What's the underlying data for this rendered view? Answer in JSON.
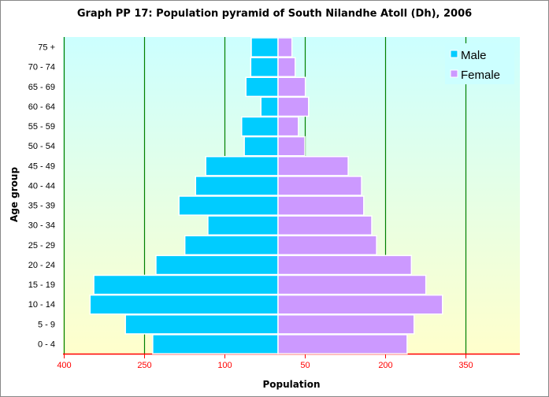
{
  "chart_data": {
    "type": "bar",
    "orientation": "horizontal",
    "title": "Graph PP 17: Population pyramid of South Nilandhe Atoll (Dh), 2006",
    "xlabel": "Population",
    "ylabel": "Age group",
    "categories": [
      "0 - 4",
      "5 - 9",
      "10 - 14",
      "15 - 19",
      "20 - 24",
      "25 - 29",
      "30 - 34",
      "35 - 39",
      "40 - 44",
      "45 - 49",
      "50 - 54",
      "55 - 59",
      "60 - 64",
      "65 - 69",
      "70 - 74",
      "75 +"
    ],
    "series": [
      {
        "name": "Male",
        "color": "#00ccff",
        "values": [
          234,
          285,
          351,
          344,
          228,
          174,
          131,
          185,
          154,
          135,
          63,
          68,
          32,
          60,
          51,
          50
        ]
      },
      {
        "name": "Female",
        "color": "#cc99ff",
        "values": [
          241,
          254,
          307,
          276,
          249,
          184,
          175,
          160,
          156,
          131,
          50,
          38,
          57,
          51,
          32,
          26
        ]
      }
    ],
    "xlim": [
      -400,
      425
    ],
    "x_ticks": [
      {
        "value": -400,
        "label": "400"
      },
      {
        "value": -250,
        "label": "250"
      },
      {
        "value": -100,
        "label": "100"
      },
      {
        "value": 50,
        "label": "50"
      },
      {
        "value": 200,
        "label": "200"
      },
      {
        "value": 350,
        "label": "350"
      }
    ],
    "grid": true,
    "legend": "top-right",
    "colors": {
      "grid": "#008000",
      "axis": "#ff0000",
      "bg_top": "#ccffff",
      "bg_bottom": "#ffffcc"
    }
  }
}
